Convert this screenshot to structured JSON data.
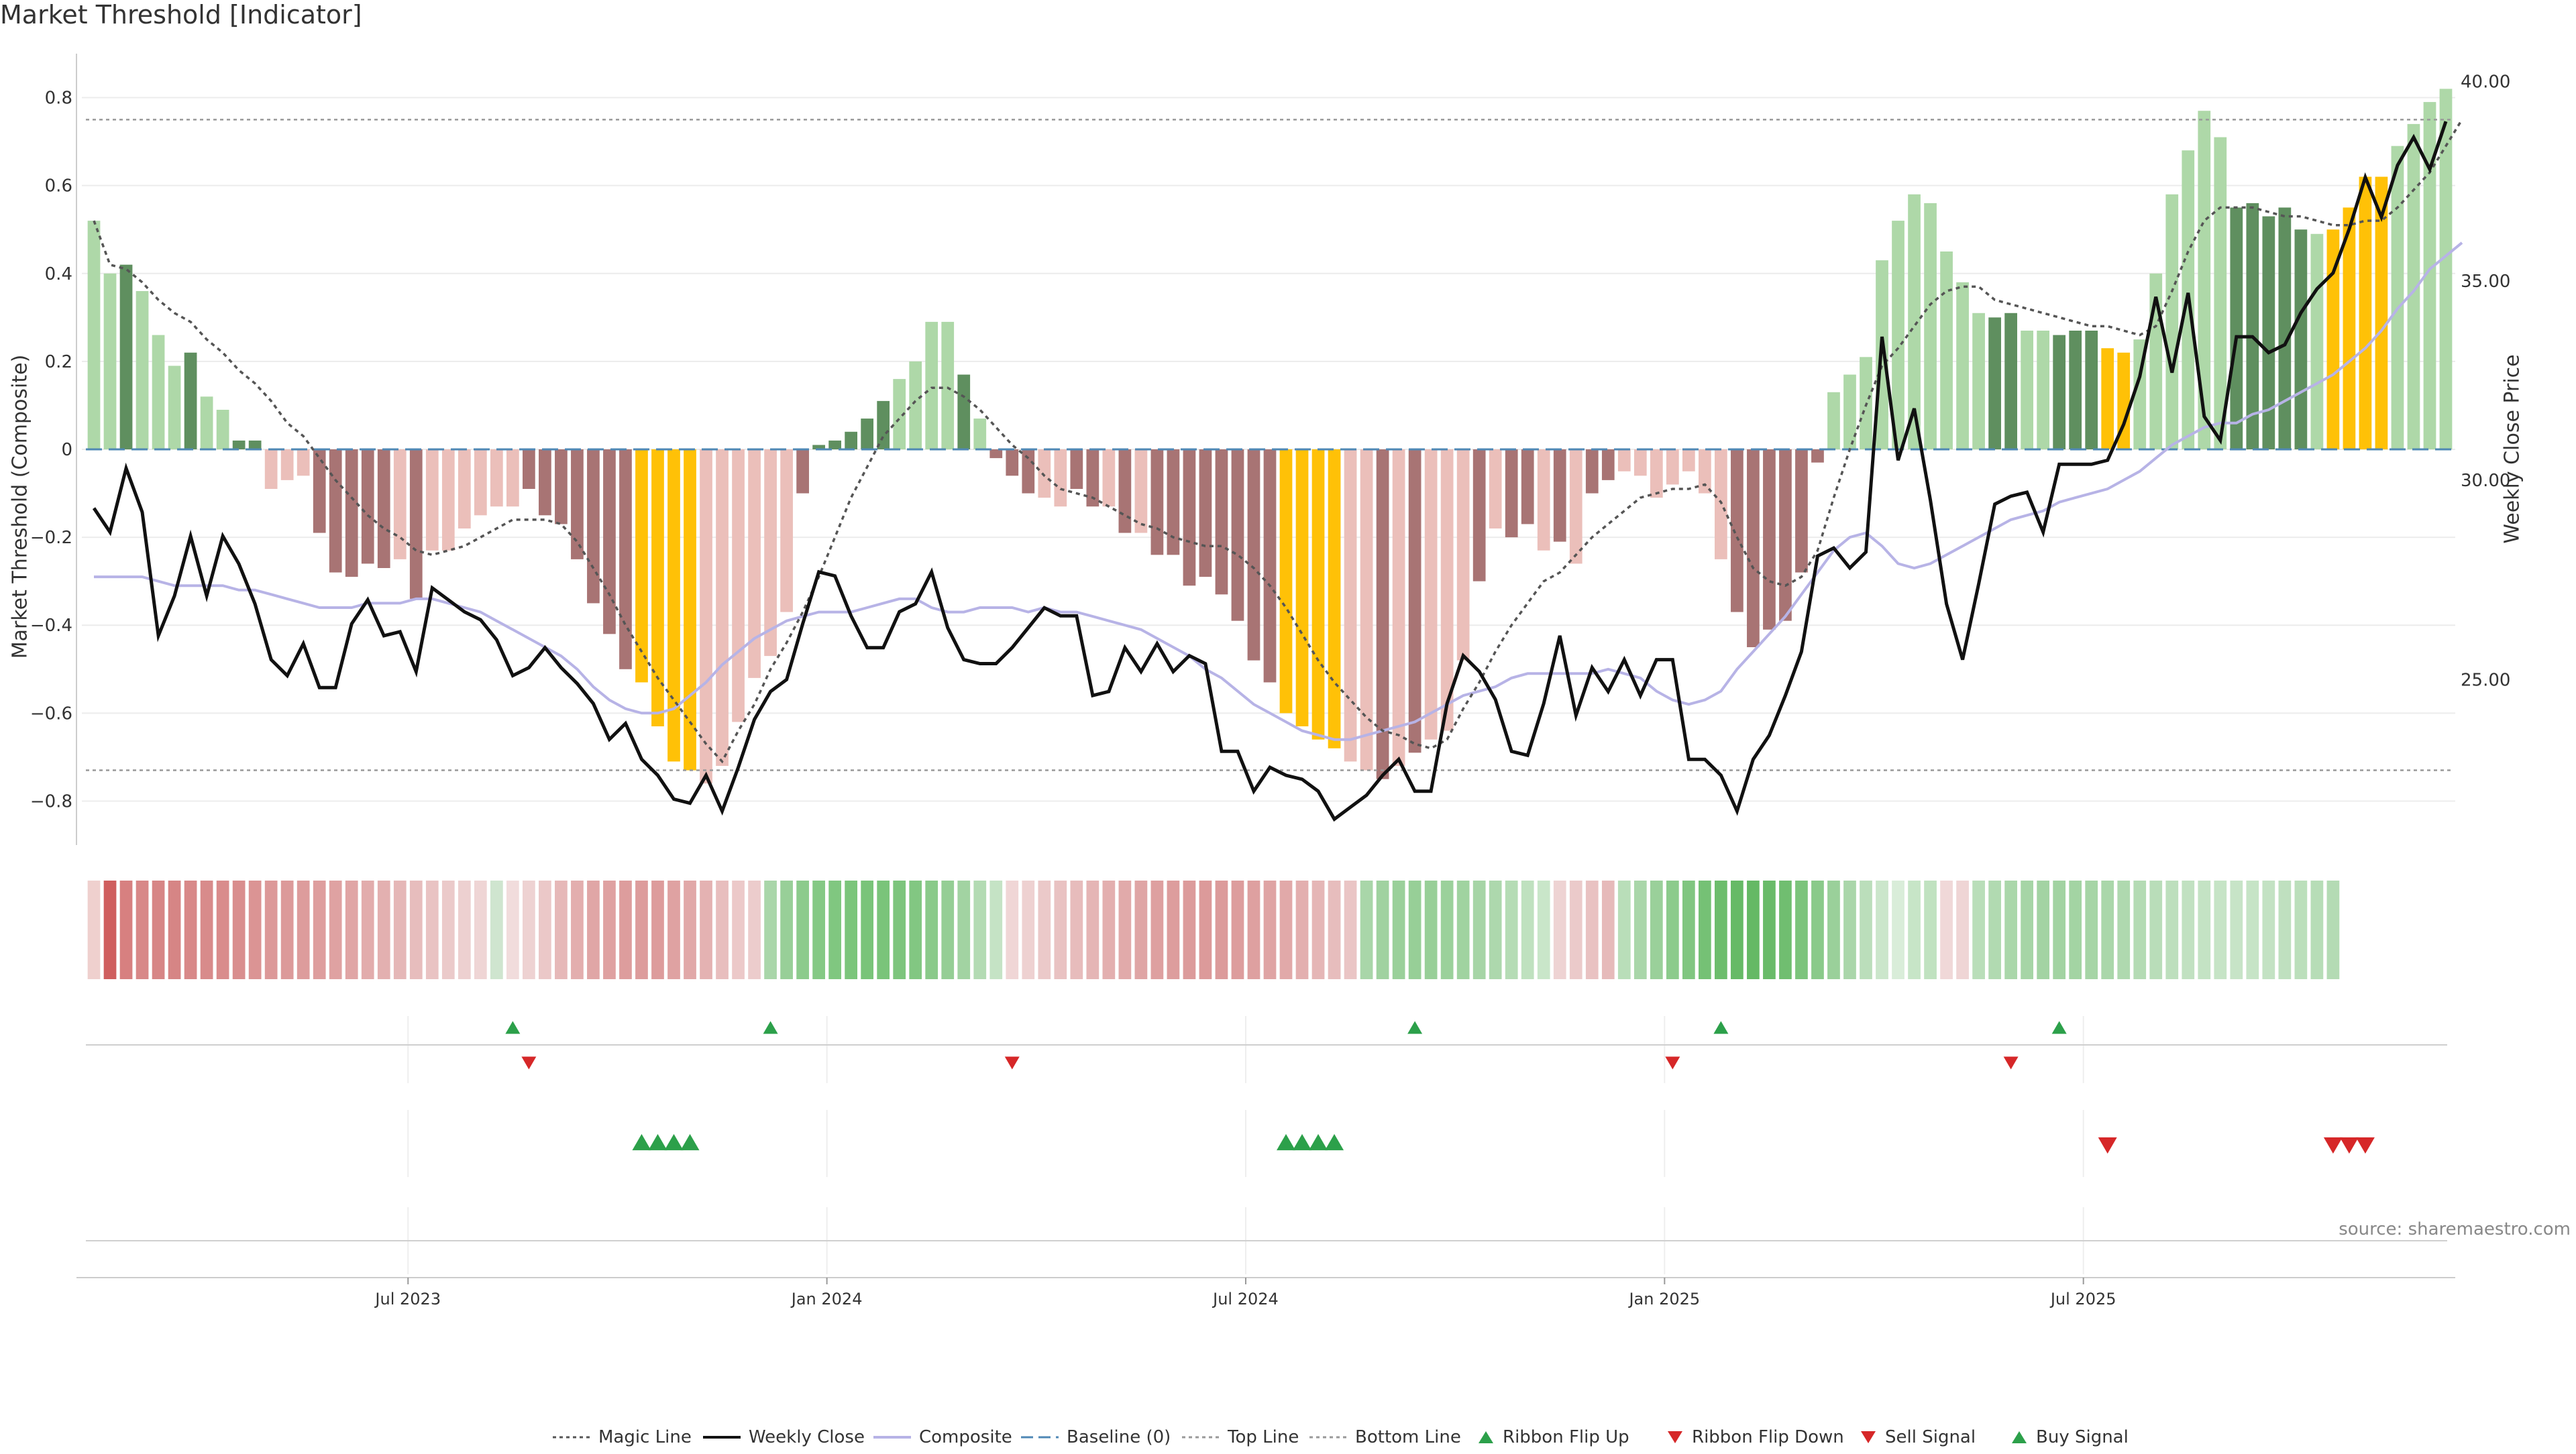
{
  "chart_data": {
    "type": "bar",
    "title": "Market Threshold [Indicator]",
    "ylabel_left": "Market Threshold (Composite)",
    "ylabel_right": "Weekly Close Price",
    "source": "source: sharemaestro.com",
    "ylim_left": [
      -0.9,
      0.9
    ],
    "ylim_right": [
      20.85,
      40.7
    ],
    "left_ticks": [
      0.8,
      0.6,
      0.4,
      0.2,
      0,
      -0.2,
      -0.4,
      -0.6,
      -0.8
    ],
    "left_tick_labels": [
      "0.8",
      "0.6",
      "0.4",
      "0.2",
      "0",
      "−0.2",
      "−0.4",
      "−0.6",
      "−0.8"
    ],
    "right_ticks": [
      40,
      35,
      30,
      25
    ],
    "right_tick_labels": [
      "40.00",
      "35.00",
      "30.00",
      "25.00"
    ],
    "x_ticks": [
      20,
      46,
      72,
      98,
      124
    ],
    "x_tick_labels": [
      "Jul 2023",
      "Jan 2024",
      "Jul 2024",
      "Jan 2025",
      "Jul 2025"
    ],
    "top_line": 0.75,
    "bottom_line": -0.73,
    "baseline": 0,
    "composite": [
      0.52,
      0.4,
      0.42,
      0.36,
      0.26,
      0.19,
      0.22,
      0.12,
      0.09,
      0.02,
      0.02,
      -0.09,
      -0.07,
      -0.06,
      -0.19,
      -0.28,
      -0.29,
      -0.26,
      -0.27,
      -0.25,
      -0.34,
      -0.23,
      -0.23,
      -0.18,
      -0.15,
      -0.13,
      -0.13,
      -0.09,
      -0.15,
      -0.17,
      -0.25,
      -0.35,
      -0.42,
      -0.5,
      -0.53,
      -0.63,
      -0.71,
      -0.73,
      -0.76,
      -0.72,
      -0.62,
      -0.52,
      -0.47,
      -0.37,
      -0.1,
      0.01,
      0.02,
      0.04,
      0.07,
      0.11,
      0.16,
      0.2,
      0.29,
      0.29,
      0.17,
      0.07,
      -0.02,
      -0.06,
      -0.1,
      -0.11,
      -0.13,
      -0.09,
      -0.13,
      -0.13,
      -0.19,
      -0.19,
      -0.24,
      -0.24,
      -0.31,
      -0.29,
      -0.33,
      -0.39,
      -0.48,
      -0.53,
      -0.6,
      -0.63,
      -0.66,
      -0.68,
      -0.71,
      -0.73,
      -0.75,
      -0.72,
      -0.69,
      -0.66,
      -0.64,
      -0.48,
      -0.3,
      -0.18,
      -0.2,
      -0.17,
      -0.23,
      -0.21,
      -0.26,
      -0.1,
      -0.07,
      -0.05,
      -0.06,
      -0.11,
      -0.08,
      -0.05,
      -0.1,
      -0.25,
      -0.37,
      -0.45,
      -0.41,
      -0.39,
      -0.28,
      -0.03,
      0.13,
      0.17,
      0.21,
      0.43,
      0.52,
      0.58,
      0.56,
      0.45,
      0.38,
      0.31,
      0.3,
      0.31,
      0.27,
      0.27,
      0.26,
      0.27,
      0.27,
      0.23,
      0.22,
      0.25,
      0.4,
      0.58,
      0.68,
      0.77,
      0.71,
      0.55,
      0.56,
      0.53,
      0.55,
      0.5,
      0.49,
      0.5,
      0.55,
      0.62,
      0.62,
      0.69,
      0.74,
      0.79,
      0.82
    ],
    "bar_colors_legend": {
      "strong_up": "#5f8f5f",
      "weak_up": "#aed8a8",
      "strong_down": "#a87474",
      "weak_down": "#ebbfba",
      "extreme": "#ffc107"
    },
    "bar_color_codes": "WWSWWWSWWSSWWWDDDDDWDWWWWWWDDDDDDDEEEEWWWWWWSSSSSSWWWWDWDDDWWDDWDWDDDDDDDDEEEEWWDWDWWWDWDDWDWDDWWWWWWWSSSSSSWWWWWWWWWWSSWWSSSEEWWWWWWSSSSSWEEEE",
    "magic_line": [
      0.52,
      0.42,
      0.41,
      0.38,
      0.34,
      0.31,
      0.29,
      0.25,
      0.22,
      0.18,
      0.15,
      0.11,
      0.06,
      0.03,
      -0.02,
      -0.07,
      -0.11,
      -0.15,
      -0.18,
      -0.2,
      -0.23,
      -0.24,
      -0.23,
      -0.22,
      -0.2,
      -0.18,
      -0.16,
      -0.16,
      -0.16,
      -0.17,
      -0.21,
      -0.27,
      -0.33,
      -0.4,
      -0.46,
      -0.52,
      -0.57,
      -0.62,
      -0.67,
      -0.71,
      -0.64,
      -0.58,
      -0.5,
      -0.44,
      -0.37,
      -0.29,
      -0.2,
      -0.11,
      -0.04,
      0.03,
      0.07,
      0.11,
      0.14,
      0.14,
      0.12,
      0.09,
      0.05,
      0.01,
      -0.02,
      -0.06,
      -0.09,
      -0.1,
      -0.11,
      -0.13,
      -0.15,
      -0.17,
      -0.18,
      -0.2,
      -0.21,
      -0.22,
      -0.22,
      -0.24,
      -0.27,
      -0.31,
      -0.36,
      -0.42,
      -0.48,
      -0.53,
      -0.57,
      -0.61,
      -0.64,
      -0.65,
      -0.67,
      -0.68,
      -0.66,
      -0.59,
      -0.53,
      -0.46,
      -0.4,
      -0.35,
      -0.3,
      -0.28,
      -0.24,
      -0.2,
      -0.17,
      -0.14,
      -0.11,
      -0.1,
      -0.09,
      -0.09,
      -0.08,
      -0.12,
      -0.2,
      -0.27,
      -0.3,
      -0.31,
      -0.29,
      -0.23,
      -0.11,
      0.0,
      0.1,
      0.19,
      0.23,
      0.28,
      0.33,
      0.36,
      0.37,
      0.37,
      0.34,
      0.33,
      0.32,
      0.31,
      0.3,
      0.29,
      0.28,
      0.28,
      0.27,
      0.26,
      0.28,
      0.36,
      0.45,
      0.52,
      0.55,
      0.55,
      0.55,
      0.54,
      0.53,
      0.53,
      0.52,
      0.51,
      0.51,
      0.52,
      0.52,
      0.55,
      0.59,
      0.63,
      0.69,
      0.75
    ],
    "weekly_close": [
      29.3,
      28.7,
      30.3,
      29.2,
      26.1,
      27.1,
      28.6,
      27.1,
      28.6,
      27.9,
      26.9,
      25.5,
      25.1,
      25.9,
      24.8,
      24.8,
      26.4,
      27.0,
      26.1,
      26.2,
      25.2,
      27.3,
      27.0,
      26.7,
      26.5,
      26.0,
      25.1,
      25.3,
      25.8,
      25.3,
      24.9,
      24.4,
      23.5,
      23.9,
      23.0,
      22.6,
      22.0,
      21.9,
      22.6,
      21.7,
      22.8,
      24.0,
      24.7,
      25.0,
      26.4,
      27.7,
      27.6,
      26.6,
      25.8,
      25.8,
      26.7,
      26.9,
      27.7,
      26.3,
      25.5,
      25.4,
      25.4,
      25.8,
      26.3,
      26.8,
      26.6,
      26.6,
      24.6,
      24.7,
      25.8,
      25.2,
      25.9,
      25.2,
      25.6,
      25.4,
      23.2,
      23.2,
      22.2,
      22.8,
      22.6,
      22.5,
      22.2,
      21.5,
      21.8,
      22.1,
      22.6,
      23.0,
      22.2,
      22.2,
      24.4,
      25.6,
      25.2,
      24.5,
      23.2,
      23.1,
      24.4,
      26.1,
      24.1,
      25.3,
      24.7,
      25.5,
      24.6,
      25.5,
      25.5,
      23.0,
      23.0,
      22.6,
      21.7,
      23.0,
      23.6,
      24.6,
      25.7,
      28.1,
      28.3,
      27.8,
      28.2,
      33.6,
      30.5,
      31.8,
      29.5,
      26.9,
      25.5,
      27.4,
      29.4,
      29.6,
      29.7,
      28.7,
      30.4,
      30.4,
      30.4,
      30.5,
      31.4,
      32.6,
      34.6,
      32.7,
      34.7,
      31.6,
      31.0,
      33.6,
      33.6,
      33.2,
      33.4,
      34.2,
      34.8,
      35.2,
      36.3,
      37.6,
      36.6,
      37.9,
      38.6,
      37.8,
      39.0
    ],
    "composite_smooth": [
      -0.29,
      -0.29,
      -0.29,
      -0.29,
      -0.3,
      -0.31,
      -0.31,
      -0.31,
      -0.31,
      -0.32,
      -0.32,
      -0.33,
      -0.34,
      -0.35,
      -0.36,
      -0.36,
      -0.36,
      -0.35,
      -0.35,
      -0.35,
      -0.34,
      -0.34,
      -0.35,
      -0.36,
      -0.37,
      -0.39,
      -0.41,
      -0.43,
      -0.45,
      -0.47,
      -0.5,
      -0.54,
      -0.57,
      -0.59,
      -0.6,
      -0.6,
      -0.59,
      -0.56,
      -0.53,
      -0.49,
      -0.46,
      -0.43,
      -0.41,
      -0.39,
      -0.38,
      -0.37,
      -0.37,
      -0.37,
      -0.36,
      -0.35,
      -0.34,
      -0.34,
      -0.36,
      -0.37,
      -0.37,
      -0.36,
      -0.36,
      -0.36,
      -0.37,
      -0.36,
      -0.37,
      -0.37,
      -0.38,
      -0.39,
      -0.4,
      -0.41,
      -0.43,
      -0.45,
      -0.47,
      -0.5,
      -0.52,
      -0.55,
      -0.58,
      -0.6,
      -0.62,
      -0.64,
      -0.65,
      -0.66,
      -0.66,
      -0.65,
      -0.64,
      -0.63,
      -0.62,
      -0.6,
      -0.58,
      -0.56,
      -0.55,
      -0.54,
      -0.52,
      -0.51,
      -0.51,
      -0.51,
      -0.51,
      -0.51,
      -0.5,
      -0.51,
      -0.52,
      -0.55,
      -0.57,
      -0.58,
      -0.57,
      -0.55,
      -0.5,
      -0.46,
      -0.42,
      -0.38,
      -0.33,
      -0.28,
      -0.23,
      -0.2,
      -0.19,
      -0.22,
      -0.26,
      -0.27,
      -0.26,
      -0.24,
      -0.22,
      -0.2,
      -0.18,
      -0.16,
      -0.15,
      -0.14,
      -0.12,
      -0.11,
      -0.1,
      -0.09,
      -0.07,
      -0.05,
      -0.02,
      0.01,
      0.03,
      0.05,
      0.06,
      0.06,
      0.08,
      0.09,
      0.11,
      0.13,
      0.15,
      0.17,
      0.2,
      0.23,
      0.27,
      0.32,
      0.36,
      0.41,
      0.44,
      0.47
    ],
    "ribbon_colors": [
      "#efd0ce",
      "#cf5e5e",
      "#d78080",
      "#d88888",
      "#d78686",
      "#d68585",
      "#d88989",
      "#d88b8b",
      "#d98c8c",
      "#d98e8e",
      "#db9494",
      "#dc9999",
      "#dc9a9a",
      "#dd9c9c",
      "#de9e9e",
      "#dfa2a2",
      "#e0a5a5",
      "#e2acac",
      "#e3b0b0",
      "#e5b7b7",
      "#e7bdbd",
      "#e9c3c3",
      "#ebcaca",
      "#edd0d0",
      "#efd5d5",
      "#cfe5cf",
      "#f1dcdc",
      "#eed2d2",
      "#ebc8c8",
      "#e6b8b8",
      "#e3aeae",
      "#e0a6a6",
      "#dfa1a1",
      "#dd9d9d",
      "#dd9c9c",
      "#dd9c9c",
      "#dfa2a2",
      "#e1a8a8",
      "#e4b2b2",
      "#e8bebe",
      "#ecc9c9",
      "#eccccc",
      "#a9d6a9",
      "#98cf98",
      "#8ccb8c",
      "#85c985",
      "#80c780",
      "#7bc57b",
      "#79c479",
      "#7ac47a",
      "#7dc57d",
      "#82c782",
      "#8aca8a",
      "#95ce95",
      "#a2d3a2",
      "#b3dbb3",
      "#c5e3c5",
      "#f0d6d6",
      "#eed1d1",
      "#ebc9c9",
      "#e9c2c2",
      "#e7bcbc",
      "#e5b5b5",
      "#e3afaf",
      "#e1aaaa",
      "#dfa5a5",
      "#dea0a0",
      "#dd9d9d",
      "#dc9b9b",
      "#dc9a9a",
      "#dc9b9b",
      "#dd9d9d",
      "#dea0a0",
      "#dfa4a4",
      "#e1a9a9",
      "#e3afaf",
      "#e5b6b6",
      "#e7bdbd",
      "#eac5c5",
      "#a9d6a9",
      "#a0d2a0",
      "#9ad09a",
      "#97cf97",
      "#98cf98",
      "#9bd19b",
      "#a0d3a0",
      "#a6d5a6",
      "#add8ad",
      "#b5dcb5",
      "#bfe1bf",
      "#c9e6c9",
      "#eed3d3",
      "#ebcaca",
      "#e9c2c2",
      "#e6baba",
      "#b9deb9",
      "#a9d6a9",
      "#9ad09a",
      "#8ccb8c",
      "#80c680",
      "#75c175",
      "#6cbd6c",
      "#66ba66",
      "#65b965",
      "#69bb69",
      "#70be70",
      "#7cc47c",
      "#8aca8a",
      "#9ad09a",
      "#aad6aa",
      "#bbdebb",
      "#cbe6cb",
      "#d9edd9",
      "#c7e5c7",
      "#c0e2c0",
      "#f0d8d8",
      "#efd5d5",
      "#b9deb9",
      "#b1dab1",
      "#aad7aa",
      "#a6d5a6",
      "#a3d3a3",
      "#a2d3a2",
      "#a3d4a3",
      "#a6d5a6",
      "#aad7aa",
      "#afd9af",
      "#b4dbb4",
      "#b9ddb9",
      "#bddfbd",
      "#c1e1c1",
      "#c4e3c4",
      "#c6e4c6",
      "#c7e4c7",
      "#c6e4c6",
      "#c3e2c3",
      "#bfe0bf",
      "#bbdfbb",
      "#b7ddb7",
      "#b4dbb4"
    ],
    "ribbon_flip_up": [
      26,
      42,
      82,
      101,
      122
    ],
    "ribbon_flip_down": [
      27,
      57,
      98,
      119
    ],
    "buy_signal": [
      34,
      35,
      36,
      37,
      74,
      75,
      76,
      77
    ],
    "sell_signal": [
      125,
      139,
      140,
      141
    ]
  },
  "legend": [
    {
      "label": "Magic Line",
      "icon": "dotted-line",
      "color": "#555555"
    },
    {
      "label": "Weekly Close",
      "icon": "solid-line",
      "color": "#111111"
    },
    {
      "label": "Composite",
      "icon": "solid-line",
      "color": "#b7b3e6"
    },
    {
      "label": "Baseline (0)",
      "icon": "dashed-line",
      "color": "#4f88b5"
    },
    {
      "label": "Top Line",
      "icon": "dotted-line",
      "color": "#999999"
    },
    {
      "label": "Bottom Line",
      "icon": "dotted-line",
      "color": "#999999"
    },
    {
      "label": "Ribbon Flip Up",
      "icon": "triangle-up",
      "color": "#2ca04a"
    },
    {
      "label": "Ribbon Flip Down",
      "icon": "triangle-down",
      "color": "#d62728"
    },
    {
      "label": "Sell Signal",
      "icon": "triangle-down",
      "color": "#d62728"
    },
    {
      "label": "Buy Signal",
      "icon": "triangle-up",
      "color": "#2ca04a"
    }
  ]
}
